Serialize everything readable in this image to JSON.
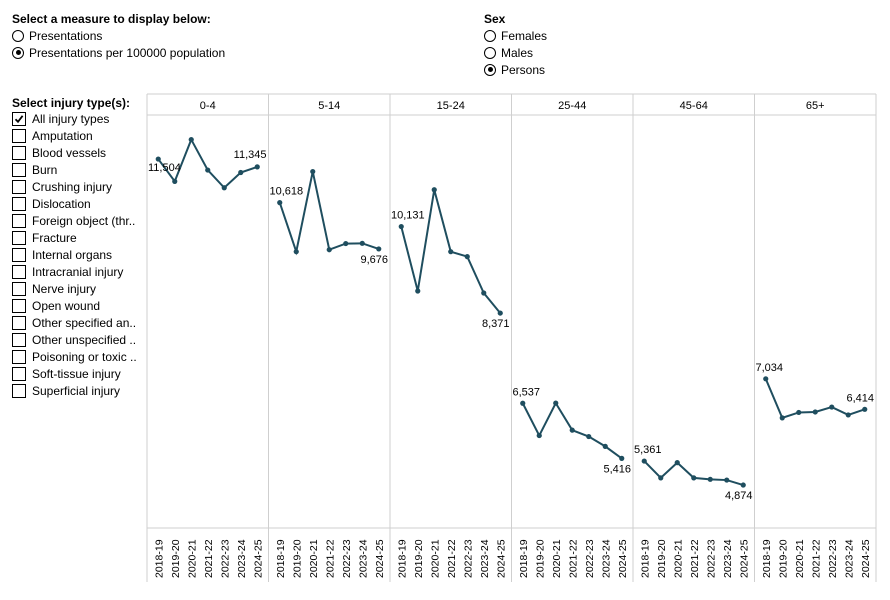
{
  "measure": {
    "heading": "Select a measure to display below:",
    "options": [
      {
        "label": "Presentations",
        "selected": false
      },
      {
        "label": "Presentations per 100000 population",
        "selected": true
      }
    ]
  },
  "sex": {
    "heading": "Sex",
    "options": [
      {
        "label": "Females",
        "selected": false
      },
      {
        "label": "Males",
        "selected": false
      },
      {
        "label": "Persons",
        "selected": true
      }
    ]
  },
  "injury": {
    "heading": "Select injury type(s):",
    "items": [
      {
        "label": "All injury types",
        "checked": true
      },
      {
        "label": "Amputation",
        "checked": false
      },
      {
        "label": "Blood vessels",
        "checked": false
      },
      {
        "label": "Burn",
        "checked": false
      },
      {
        "label": "Crushing injury",
        "checked": false
      },
      {
        "label": "Dislocation",
        "checked": false
      },
      {
        "label": "Foreign object (thr..",
        "checked": false
      },
      {
        "label": "Fracture",
        "checked": false
      },
      {
        "label": "Internal organs",
        "checked": false
      },
      {
        "label": "Intracranial injury",
        "checked": false
      },
      {
        "label": "Nerve injury",
        "checked": false
      },
      {
        "label": "Open wound",
        "checked": false
      },
      {
        "label": "Other specified an..",
        "checked": false
      },
      {
        "label": "Other unspecified ..",
        "checked": false
      },
      {
        "label": "Poisoning or toxic ..",
        "checked": false
      },
      {
        "label": "Soft-tissue injury",
        "checked": false
      },
      {
        "label": "Superficial injury",
        "checked": false
      }
    ]
  },
  "colors": {
    "line": "#1f4e5f",
    "grid": "#cfcfcf"
  },
  "chart_data": {
    "type": "line",
    "x": [
      "2018-19",
      "2019-20",
      "2020-21",
      "2021-22",
      "2022-23",
      "2023-24",
      "2024-25"
    ],
    "ylim": [
      4000,
      12400
    ],
    "panels": [
      {
        "name": "0-4",
        "values": [
          11504,
          11050,
          11900,
          11280,
          10920,
          11230,
          11345
        ],
        "labels": [
          "11,504",
          "",
          "",
          "",
          "",
          "",
          "11,345"
        ]
      },
      {
        "name": "5-14",
        "values": [
          10618,
          9620,
          11250,
          9660,
          9785,
          9790,
          9676
        ],
        "labels": [
          "10,618",
          "",
          "",
          "",
          "",
          "",
          "9,676"
        ]
      },
      {
        "name": "15-24",
        "values": [
          10131,
          8820,
          10880,
          9620,
          9520,
          8780,
          8371
        ],
        "labels": [
          "10,131",
          "",
          "",
          "",
          "",
          "",
          "8,371"
        ]
      },
      {
        "name": "25-44",
        "values": [
          6537,
          5880,
          6540,
          5990,
          5860,
          5660,
          5416
        ],
        "labels": [
          "6,537",
          "",
          "",
          "",
          "",
          "",
          "5,416"
        ]
      },
      {
        "name": "45-64",
        "values": [
          5361,
          5020,
          5330,
          5020,
          4990,
          4975,
          4874
        ],
        "labels": [
          "5,361",
          "",
          "",
          "",
          "",
          "",
          "4,874"
        ]
      },
      {
        "name": "65+",
        "values": [
          7034,
          6240,
          6350,
          6360,
          6460,
          6300,
          6414
        ],
        "labels": [
          "7,034",
          "",
          "",
          "",
          "",
          "",
          "6,414"
        ]
      }
    ]
  }
}
